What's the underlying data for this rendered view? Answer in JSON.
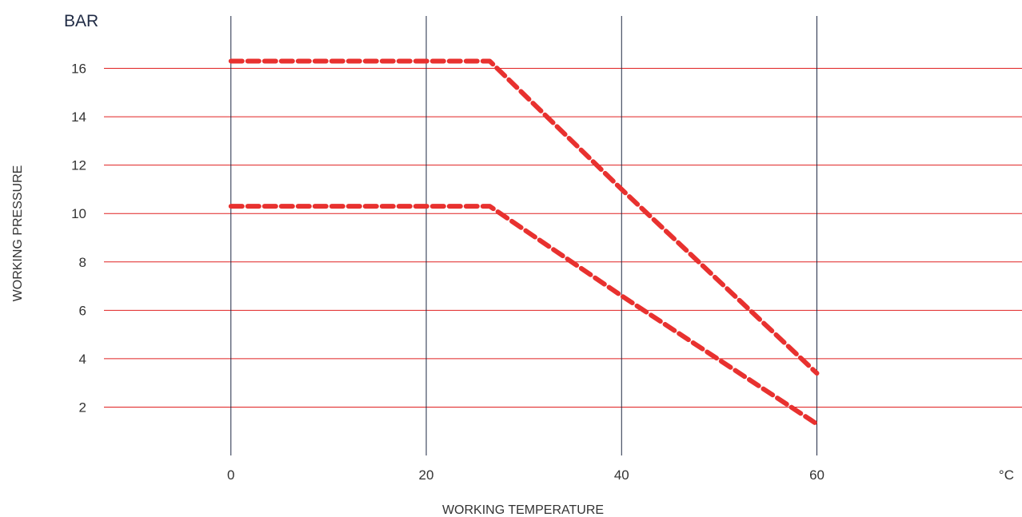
{
  "chart_data": {
    "type": "line",
    "y_unit": "BAR",
    "x_unit": "°C",
    "xlabel": "WORKING TEMPERATURE",
    "ylabel": "WORKING PRESSURE",
    "x_ticks": [
      0,
      20,
      40,
      60
    ],
    "y_ticks": [
      2,
      4,
      6,
      8,
      10,
      12,
      14,
      16
    ],
    "xlim": [
      -13,
      81
    ],
    "ylim": [
      0,
      18
    ],
    "grid": {
      "horizontal": true,
      "vertical": true
    },
    "line_style": "dashed",
    "series": [
      {
        "x": [
          0,
          26.5,
          40,
          60
        ],
        "y": [
          16.3,
          16.3,
          11,
          3.4
        ]
      },
      {
        "x": [
          0,
          26.5,
          40,
          60
        ],
        "y": [
          10.3,
          10.3,
          6.6,
          1.3
        ]
      }
    ]
  },
  "colors": {
    "series": "#e8312f",
    "horizontal_grid": "#e02020",
    "vertical_grid": "#1f2a44",
    "text": "#333333"
  }
}
